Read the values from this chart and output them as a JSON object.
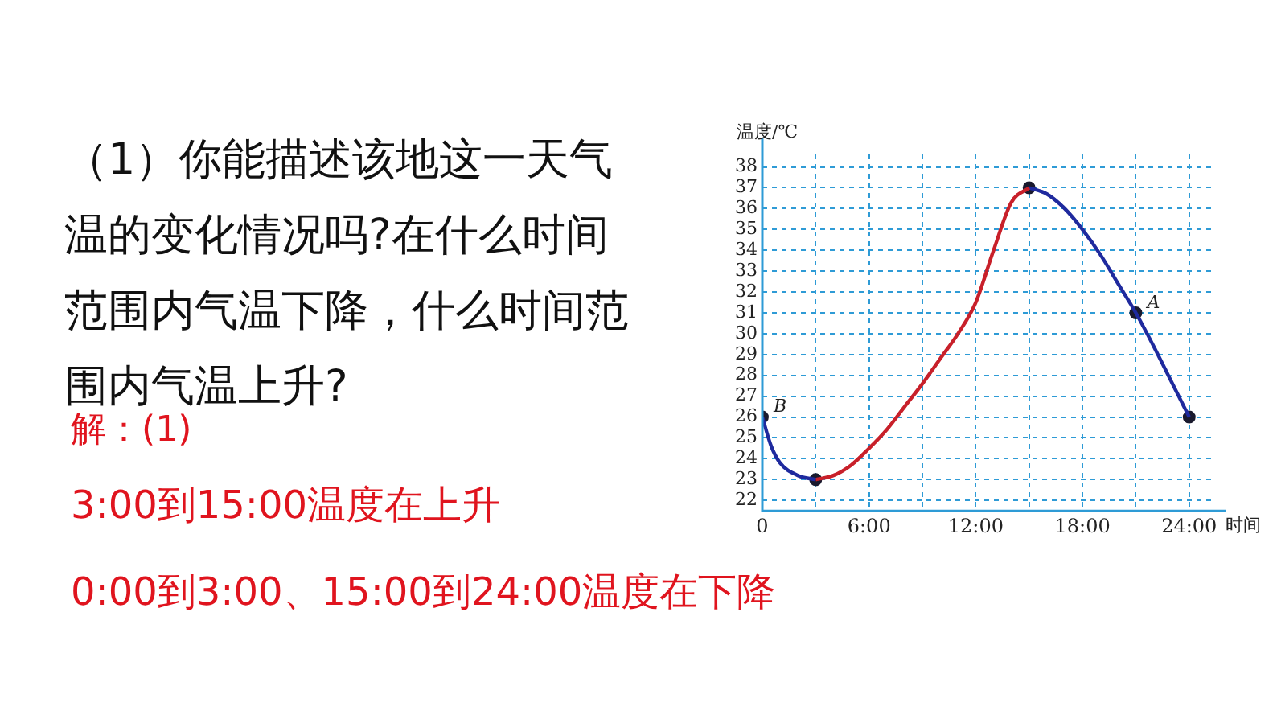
{
  "chart_data": {
    "type": "line",
    "title": "（1）你能描述该地这一天气温的变化情况吗?在什么时间范围内气温下降，什么时间范围内气温上升?",
    "xlabel": "时间",
    "ylabel": "温度/℃",
    "annotations": [
      "解：(1)",
      "3:00到15:00温度在上升",
      "0:00到3:00、15:00到24:00温度在下降",
      {
        "text": "A",
        "x": 21,
        "y": 31
      },
      {
        "text": "B",
        "x": 0,
        "y": 26
      }
    ],
    "series": [
      {
        "color": "#1f2a9e",
        "x": [
          0,
          0.5,
          1,
          2,
          3
        ],
        "values": [
          26,
          24.6,
          23.8,
          23.2,
          23
        ]
      },
      {
        "color": "#c8202a",
        "x": [
          3,
          4,
          5,
          6,
          7,
          8,
          9,
          10,
          11,
          12,
          13,
          14,
          15
        ],
        "values": [
          23,
          23.2,
          23.7,
          24.5,
          25.4,
          26.5,
          27.6,
          28.8,
          30,
          31.5,
          34,
          36.3,
          37
        ]
      },
      {
        "color": "#1f2a9e",
        "x": [
          15,
          16,
          17,
          18,
          19,
          20,
          21,
          22,
          23,
          24
        ],
        "values": [
          37,
          36.7,
          36,
          35,
          33.8,
          32.4,
          31,
          29.4,
          27.7,
          26
        ]
      },
      {
        "type": "scatter",
        "marker": "circle",
        "color": "#1a1a2e",
        "x": [
          0,
          3,
          15,
          21,
          24
        ],
        "values": [
          26,
          23,
          37,
          31,
          26
        ]
      }
    ],
    "xlim": [
      0,
      25.5
    ],
    "xticks": [
      {
        "value": 0,
        "label": "0"
      },
      {
        "value": 3,
        "label": null
      },
      {
        "value": 6,
        "label": "6:00"
      },
      {
        "value": 9,
        "label": null
      },
      {
        "value": 12,
        "label": "12:00"
      },
      {
        "value": 15,
        "label": null
      },
      {
        "value": 18,
        "label": "18:00"
      },
      {
        "value": 21,
        "label": null
      },
      {
        "value": 24,
        "label": "24:00"
      }
    ],
    "ylim": [
      21.5,
      38.6
    ],
    "yticks": [
      22,
      23,
      24,
      25,
      26,
      27,
      28,
      29,
      30,
      31,
      32,
      33,
      34,
      35,
      36,
      37,
      38
    ],
    "grid": true,
    "line_style": "solid",
    "legend": false
  }
}
